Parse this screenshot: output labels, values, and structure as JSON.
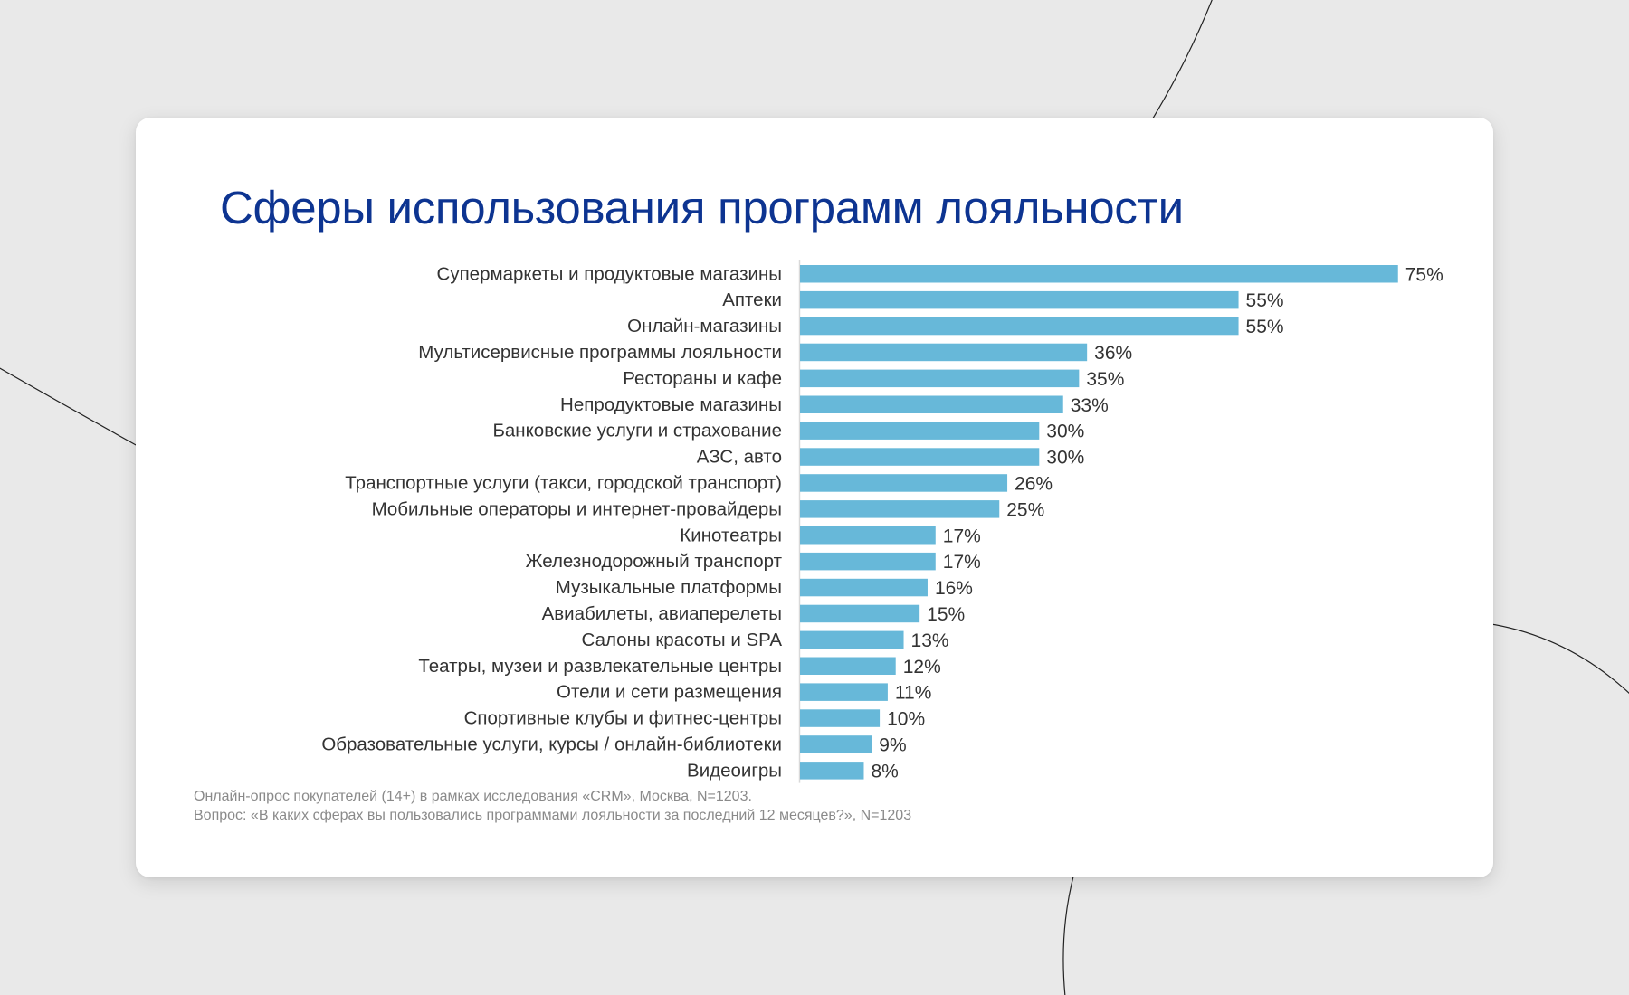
{
  "title": "Сферы использования программ лояльности",
  "chart_data": {
    "type": "bar",
    "orientation": "horizontal",
    "title": "Сферы использования программ лояльности",
    "xlabel": "",
    "ylabel": "",
    "xlim": [
      0,
      80
    ],
    "grid": false,
    "value_suffix": "%",
    "bar_color": "#67b8d9",
    "categories": [
      "Супермаркеты и продуктовые магазины",
      "Аптеки",
      "Онлайн-магазины",
      "Мультисервисные программы лояльности",
      "Рестораны и кафе",
      "Непродуктовые магазины",
      "Банковские услуги и страхование",
      "АЗС, авто",
      "Транспортные услуги (такси, городской транспорт)",
      "Мобильные операторы и интернет-провайдеры",
      "Кинотеатры",
      "Железнодорожный транспорт",
      "Музыкальные платформы",
      "Авиабилеты, авиаперелеты",
      "Салоны красоты и SPA",
      "Театры, музеи и развлекательные центры",
      "Отели и сети размещения",
      "Спортивные клубы и фитнес-центры",
      "Образовательные услуги, курсы / онлайн-библиотеки",
      "Видеоигры"
    ],
    "values": [
      75,
      55,
      55,
      36,
      35,
      33,
      30,
      30,
      26,
      25,
      17,
      17,
      16,
      15,
      13,
      12,
      11,
      10,
      9,
      8
    ],
    "data_labels": [
      "75%",
      "55%",
      "55%",
      "36%",
      "35%",
      "33%",
      "30%",
      "30%",
      "26%",
      "25%",
      "17%",
      "17%",
      "16%",
      "15%",
      "13%",
      "12%",
      "11%",
      "10%",
      "9%",
      "8%"
    ]
  },
  "footnote": {
    "line1": "Онлайн-опрос покупателей (14+) в рамках исследования «CRM», Москва, N=1203.",
    "line2": "Вопрос: «В каких сферах вы пользовались программами лояльности за последний 12 месяцев?», N=1203"
  },
  "colors": {
    "title": "#0d3491",
    "bar": "#67b8d9",
    "background": "#e9e9e9",
    "card": "#ffffff"
  }
}
